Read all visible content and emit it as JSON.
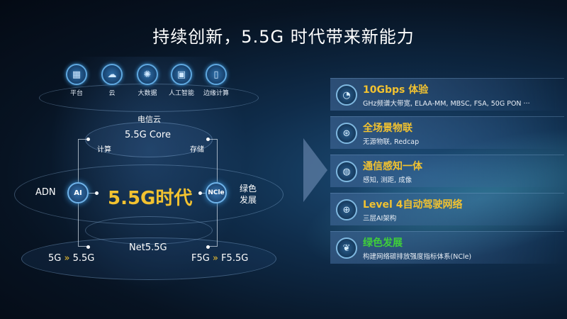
{
  "title": "持续创新，5.5G 时代带来新能力",
  "top_icons": [
    {
      "label": "平台",
      "icon": "platform-icon"
    },
    {
      "label": "云",
      "icon": "cloud-icon"
    },
    {
      "label": "大数据",
      "icon": "big-data-icon"
    },
    {
      "label": "人工智能",
      "icon": "ai-chip-icon"
    },
    {
      "label": "边缘计算",
      "icon": "edge-computing-icon"
    }
  ],
  "diagram": {
    "telecom_cloud": "电信云",
    "core": "5.5G Core",
    "compute": "计算",
    "storage": "存储",
    "adn": "ADN",
    "ai_badge": "AI",
    "center": "5.5G时代",
    "ncle_badge": "NCle",
    "green_line1": "绿色",
    "green_line2": "发展",
    "net": "Net5.5G",
    "left_from": "5G",
    "left_to": "5.5G",
    "right_from": "F5G",
    "right_to": "F5.5G",
    "arrow_glyph": "»"
  },
  "capabilities": [
    {
      "title": "10Gbps 体验",
      "desc": "GHz频谱大带宽, ELAA-MM, MBSC, FSA, 50G PON ···",
      "icon": "speed-gauge-icon",
      "color": "#f2c230"
    },
    {
      "title": "全场景物联",
      "desc": "无源物联, Redcap",
      "icon": "iot-icon",
      "color": "#f2c230"
    },
    {
      "title": "通信感知一体",
      "desc": "感知, 测距, 成像",
      "icon": "sensing-icon",
      "color": "#f2c230"
    },
    {
      "title": "Level 4自动驾驶网络",
      "desc": "三层AI架构",
      "icon": "globe-network-icon",
      "color": "#f2c230"
    },
    {
      "title": "绿色发展",
      "desc": "构建网络碳排放强度指标体系(NCle)",
      "icon": "leaf-icon",
      "color": "#3fcf3a"
    }
  ]
}
